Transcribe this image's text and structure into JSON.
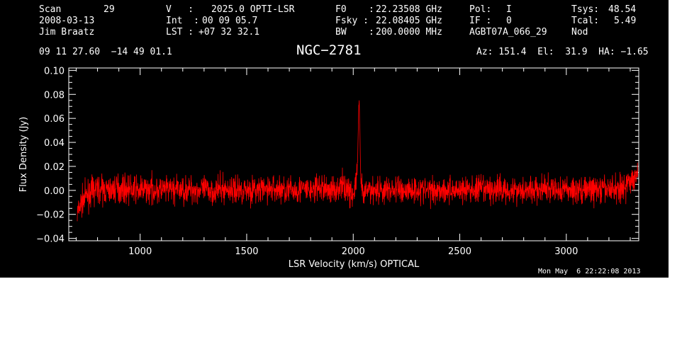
{
  "header": {
    "scan_label": "Scan",
    "scan_value": "29",
    "date": "2008-03-13",
    "observer": "Jim Braatz",
    "v_label": "V   :",
    "v_value": "2025.0 OPTI-LSR",
    "int_label": "Int  :",
    "int_value": "00 09 05.7",
    "lst_label": "LST :",
    "lst_value": "+07 32 32.1",
    "f0_label": "F0    :",
    "f0_value": "22.23508 GHz",
    "fsky_label": "Fsky :",
    "fsky_value": "22.08405 GHz",
    "bw_label": "BW    :",
    "bw_value": "200.0000 MHz",
    "pol_label": "Pol:",
    "pol_value": "I",
    "if_label": "IF :",
    "if_value": "0",
    "project": "AGBT07A_066_29",
    "tsys_label": "Tsys:",
    "tsys_value": "48.54",
    "tcal_label": "Tcal:",
    "tcal_value": "5.49",
    "proc": "Nod",
    "coords": "09 11 27.60  −14 49 01.1",
    "source": "NGC−2781",
    "az_el_ha": "Az: 151.4  El:  31.9  HA: −1.65"
  },
  "footer": {
    "timestamp": "Mon May  6 22:22:08 2013"
  },
  "chart_data": {
    "type": "line",
    "xlabel": "LSR Velocity (km/s) OPTICAL",
    "ylabel": "Flux Density (Jy)",
    "xlim": [
      665,
      3340
    ],
    "ylim": [
      -0.042,
      0.102
    ],
    "x_ticks": [
      1000,
      1500,
      2000,
      2500,
      3000
    ],
    "x_tick_labels": [
      "1000",
      "1500",
      "2000",
      "2500",
      "3000"
    ],
    "y_ticks": [
      -0.04,
      -0.02,
      0.0,
      0.02,
      0.04,
      0.06,
      0.08,
      0.1
    ],
    "y_tick_labels": [
      "−0.04",
      "−0.02",
      "0.00",
      "0.02",
      "0.04",
      "0.06",
      "0.08",
      "0.10"
    ],
    "grid": false,
    "line_color": "#ff0000",
    "series": [
      {
        "x": [
          705,
          720,
          740,
          760,
          780,
          800,
          850,
          900,
          950,
          1000,
          1050,
          1100,
          1150,
          1200,
          1250,
          1300,
          1350,
          1400,
          1450,
          1500,
          1550,
          1600,
          1650,
          1700,
          1750,
          1800,
          1850,
          1900,
          1950,
          1980,
          2000,
          2010,
          2020,
          2025,
          2028,
          2031,
          2035,
          2040,
          2050,
          2060,
          2100,
          2150,
          2200,
          2250,
          2300,
          2350,
          2400,
          2450,
          2500,
          2550,
          2600,
          2650,
          2700,
          2750,
          2800,
          2850,
          2900,
          2950,
          3000,
          3050,
          3100,
          3150,
          3200,
          3250,
          3270,
          3290,
          3310,
          3325,
          3335
        ],
        "values": [
          -0.02,
          -0.012,
          -0.006,
          -0.003,
          0.0,
          0.001,
          0.0,
          0.002,
          0.001,
          0.0,
          0.001,
          0.0,
          0.001,
          0.0,
          0.001,
          0.0,
          0.0,
          0.001,
          0.0,
          0.001,
          0.0,
          0.001,
          0.001,
          0.0,
          0.001,
          0.0,
          0.002,
          0.0,
          0.004,
          0.0,
          -0.005,
          0.004,
          0.02,
          0.065,
          0.072,
          0.05,
          0.012,
          0.0,
          -0.006,
          0.0,
          0.001,
          0.0,
          0.001,
          0.0,
          0.001,
          0.0,
          0.001,
          0.0,
          0.001,
          0.0,
          0.001,
          0.0,
          0.001,
          0.0,
          0.001,
          0.0,
          0.001,
          0.0,
          0.001,
          0.0,
          0.001,
          0.0,
          0.001,
          0.002,
          0.003,
          0.005,
          0.009,
          0.013,
          0.018
        ]
      }
    ]
  }
}
